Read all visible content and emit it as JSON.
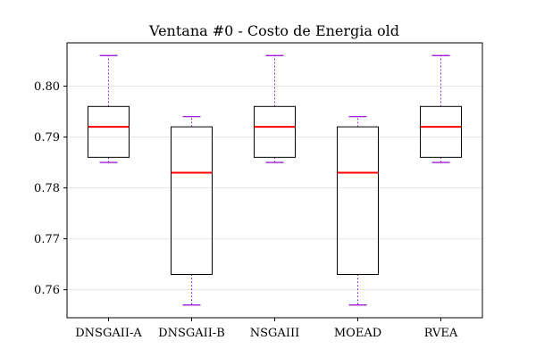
{
  "chart_data": {
    "type": "boxplot",
    "title": "Ventana #0 - Costo de Energia  old",
    "xlabel": "",
    "ylabel": "",
    "ylim": [
      0.7545,
      0.8085
    ],
    "y_ticks": [
      0.76,
      0.77,
      0.78,
      0.79,
      0.8
    ],
    "y_tick_labels": [
      "0.76",
      "0.77",
      "0.78",
      "0.79",
      "0.80"
    ],
    "grid": "horizontal, light",
    "categories": [
      "DNSGAII-A",
      "DNSGAII-B",
      "NSGAIII",
      "MOEAD",
      "RVEA"
    ],
    "boxes": [
      {
        "name": "DNSGAII-A",
        "whisker_low": 0.785,
        "q1": 0.786,
        "median": 0.792,
        "q3": 0.796,
        "whisker_high": 0.806
      },
      {
        "name": "DNSGAII-B",
        "whisker_low": 0.757,
        "q1": 0.763,
        "median": 0.783,
        "q3": 0.792,
        "whisker_high": 0.794
      },
      {
        "name": "NSGAIII",
        "whisker_low": 0.785,
        "q1": 0.786,
        "median": 0.792,
        "q3": 0.796,
        "whisker_high": 0.806
      },
      {
        "name": "MOEAD",
        "whisker_low": 0.757,
        "q1": 0.763,
        "median": 0.783,
        "q3": 0.792,
        "whisker_high": 0.794
      },
      {
        "name": "RVEA",
        "whisker_low": 0.785,
        "q1": 0.786,
        "median": 0.792,
        "q3": 0.796,
        "whisker_high": 0.806
      }
    ],
    "colors": {
      "box": "#000000",
      "median": "#ff0000",
      "whisker": "#9400d3",
      "cap": "#9400d3",
      "grid": "#e6e6e6"
    }
  }
}
